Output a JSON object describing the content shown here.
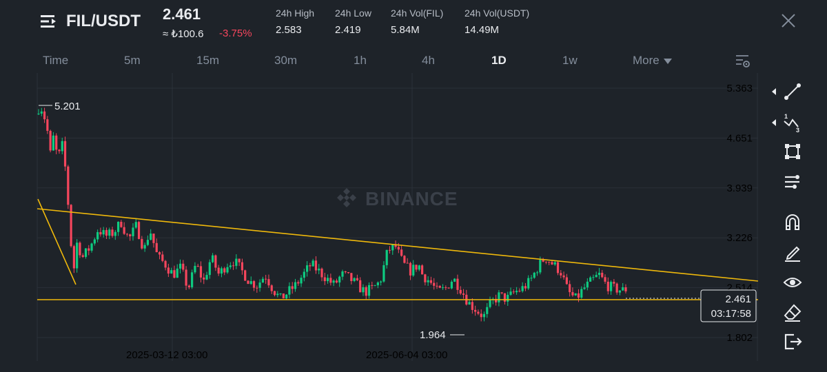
{
  "header": {
    "pair": "FIL/USDT",
    "last_price": "2.461",
    "fiat_price": "≈ ₺100.6",
    "change_pct": "-3.75%",
    "stats": [
      {
        "label": "24h High",
        "value": "2.583"
      },
      {
        "label": "24h Low",
        "value": "2.419"
      },
      {
        "label": "24h Vol(FIL)",
        "value": "5.84M"
      },
      {
        "label": "24h Vol(USDT)",
        "value": "14.49M"
      }
    ]
  },
  "timeframes": [
    {
      "label": "Time",
      "active": false
    },
    {
      "label": "5m",
      "active": false
    },
    {
      "label": "15m",
      "active": false
    },
    {
      "label": "30m",
      "active": false
    },
    {
      "label": "1h",
      "active": false
    },
    {
      "label": "4h",
      "active": false
    },
    {
      "label": "1D",
      "active": true
    },
    {
      "label": "1w",
      "active": false
    },
    {
      "label": "More",
      "active": false
    }
  ],
  "chart": {
    "watermark": "BINANCE",
    "y_ticks": [
      "5.363",
      "4.651",
      "3.939",
      "3.226",
      "2.514",
      "1.802"
    ],
    "x_ticks": [
      "2025-03-12 03:00",
      "2025-06-04 03:00"
    ],
    "high_label": "5.201",
    "low_label": "1.964",
    "current_price": "2.461",
    "countdown": "03:17:58",
    "colors": {
      "up": "#0ecb81",
      "down": "#f6465d",
      "trendline": "#f0b90b"
    }
  },
  "chart_data": {
    "type": "candlestick",
    "ylim": [
      1.64,
      5.68
    ],
    "y_ticks": [
      5.363,
      4.651,
      3.939,
      3.226,
      2.514,
      1.802
    ],
    "x_ticks": [
      "2025-03-12 03:00",
      "2025-06-04 03:00"
    ],
    "annotations": [
      {
        "label": "5.201",
        "value": 5.201,
        "kind": "period-high"
      },
      {
        "label": "1.964",
        "value": 1.964,
        "kind": "period-low"
      }
    ],
    "last_price": 2.461,
    "candle_count": 200,
    "anchor_closes": [
      [
        0,
        5.0
      ],
      [
        1,
        5.05
      ],
      [
        2,
        5.1
      ],
      [
        3,
        4.95
      ],
      [
        4,
        4.9
      ],
      [
        6,
        4.4
      ],
      [
        8,
        4.7
      ],
      [
        10,
        4.3
      ],
      [
        12,
        4.6
      ],
      [
        14,
        4.2
      ],
      [
        16,
        3.5
      ],
      [
        18,
        2.7
      ],
      [
        20,
        3.15
      ],
      [
        23,
        2.95
      ],
      [
        27,
        3.1
      ],
      [
        31,
        3.35
      ],
      [
        35,
        3.25
      ],
      [
        39,
        3.3
      ],
      [
        43,
        3.45
      ],
      [
        47,
        3.2
      ],
      [
        51,
        3.4
      ],
      [
        55,
        3.05
      ],
      [
        58,
        3.35
      ],
      [
        62,
        2.95
      ],
      [
        66,
        2.85
      ],
      [
        70,
        2.7
      ],
      [
        74,
        2.8
      ],
      [
        78,
        2.5
      ],
      [
        82,
        2.85
      ],
      [
        86,
        2.6
      ],
      [
        90,
        2.95
      ],
      [
        94,
        2.7
      ],
      [
        98,
        2.85
      ],
      [
        102,
        2.9
      ],
      [
        106,
        2.75
      ],
      [
        110,
        2.6
      ],
      [
        114,
        2.55
      ],
      [
        118,
        2.7
      ],
      [
        122,
        2.5
      ],
      [
        126,
        2.35
      ],
      [
        130,
        2.45
      ],
      [
        134,
        2.55
      ],
      [
        138,
        2.7
      ],
      [
        142,
        2.85
      ],
      [
        146,
        2.75
      ],
      [
        150,
        2.65
      ],
      [
        154,
        2.55
      ],
      [
        158,
        2.7
      ],
      [
        162,
        2.65
      ],
      [
        166,
        2.55
      ],
      [
        170,
        2.45
      ],
      [
        174,
        2.5
      ],
      [
        178,
        2.6
      ],
      [
        182,
        3.05
      ],
      [
        186,
        3.1
      ],
      [
        190,
        2.85
      ],
      [
        194,
        2.75
      ],
      [
        198,
        2.85
      ],
      [
        200,
        2.7
      ],
      [
        204,
        2.6
      ],
      [
        208,
        2.45
      ],
      [
        212,
        2.5
      ],
      [
        216,
        2.65
      ],
      [
        220,
        2.5
      ],
      [
        224,
        2.3
      ],
      [
        228,
        2.2
      ],
      [
        232,
        2.1
      ],
      [
        236,
        2.3
      ],
      [
        240,
        2.4
      ],
      [
        244,
        2.35
      ],
      [
        248,
        2.45
      ],
      [
        252,
        2.5
      ],
      [
        256,
        2.6
      ],
      [
        260,
        2.8
      ],
      [
        264,
        2.95
      ],
      [
        268,
        2.85
      ],
      [
        272,
        2.75
      ],
      [
        276,
        2.45
      ],
      [
        280,
        2.35
      ],
      [
        284,
        2.5
      ],
      [
        288,
        2.6
      ],
      [
        292,
        2.7
      ],
      [
        296,
        2.55
      ],
      [
        300,
        2.5
      ],
      [
        304,
        2.48
      ],
      [
        306,
        2.46
      ]
    ]
  },
  "toolbar": [
    {
      "name": "trendline-tool-icon"
    },
    {
      "name": "fibonacci-tool-icon"
    },
    {
      "name": "shape-tool-icon"
    },
    {
      "name": "indicator-settings-icon"
    },
    {
      "name": "magnet-icon"
    },
    {
      "name": "draw-pencil-icon"
    },
    {
      "name": "visibility-eye-icon"
    },
    {
      "name": "eraser-icon"
    },
    {
      "name": "exit-icon"
    }
  ]
}
